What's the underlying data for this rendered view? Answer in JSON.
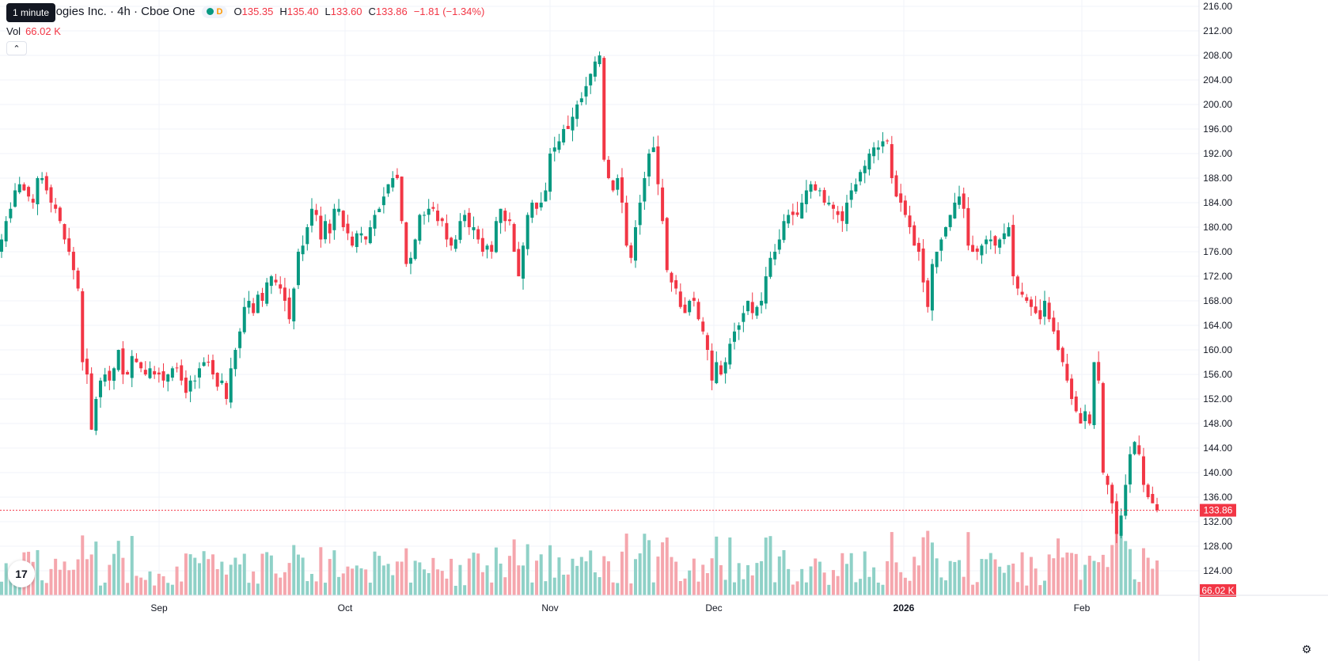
{
  "legend": {
    "title": "r Technologies Inc. · 4h · Cboe One",
    "status_letter": "D",
    "open_label": "O",
    "open": "135.35",
    "high_label": "H",
    "high": "135.40",
    "low_label": "L",
    "low": "133.60",
    "close_label": "C",
    "close": "133.86",
    "change": "−1.81 (−1.34%)",
    "tooltip": "1 minute"
  },
  "volume": {
    "label": "Vol",
    "value": "66.02 K"
  },
  "colors": {
    "up": "#089981",
    "down": "#f23645",
    "vol_up": "#8fd1c7",
    "vol_down": "#f5a6ad",
    "grid": "#f0f3fa",
    "axis_text": "#131722"
  },
  "chart_data": {
    "type": "candlestick",
    "title": "",
    "ylim": [
      120,
      216
    ],
    "y_ticks": [
      "216.00",
      "212.00",
      "208.00",
      "204.00",
      "200.00",
      "196.00",
      "192.00",
      "188.00",
      "184.00",
      "180.00",
      "176.00",
      "172.00",
      "168.00",
      "164.00",
      "160.00",
      "156.00",
      "152.00",
      "148.00",
      "144.00",
      "140.00",
      "136.00",
      "132.00",
      "128.00",
      "124.00"
    ],
    "x_ticks": [
      "Sep",
      "Oct",
      "Nov",
      "Dec",
      "2026",
      "Feb"
    ],
    "last_price": "133.86",
    "last_volume": "66.02 K",
    "closes": [
      178,
      181,
      183,
      186,
      187,
      186,
      185,
      184,
      188,
      188,
      186,
      184,
      183,
      181,
      178,
      176,
      173,
      170,
      158,
      156,
      147,
      152,
      155,
      156,
      155,
      157,
      160,
      156,
      156,
      159,
      158,
      157,
      156,
      157,
      156,
      156,
      155,
      156,
      157,
      157,
      155,
      153,
      155,
      155,
      157,
      158,
      158,
      156,
      154,
      155,
      152,
      157,
      160,
      163,
      167,
      168,
      166,
      169,
      168,
      171,
      172,
      171,
      170,
      168,
      165,
      170,
      176,
      177,
      180,
      183,
      182,
      178,
      181,
      179,
      183,
      183,
      180,
      179,
      177,
      179,
      179,
      178,
      180,
      182,
      183,
      185,
      187,
      188,
      188,
      181,
      174,
      175,
      178,
      182,
      182,
      183,
      183,
      181,
      181,
      178,
      177,
      178,
      181,
      182,
      180,
      180,
      178,
      176,
      177,
      176,
      181,
      183,
      181,
      181,
      176,
      172,
      177,
      182,
      184,
      183,
      184,
      186,
      192,
      193,
      194,
      196,
      196,
      198,
      200,
      201,
      203,
      205,
      207,
      208,
      191,
      188,
      186,
      188,
      184,
      177,
      175,
      180,
      184,
      188,
      192,
      193,
      187,
      181,
      173,
      171,
      170,
      167,
      166,
      168,
      168,
      165,
      163,
      160,
      155,
      158,
      156,
      158,
      161,
      163,
      164,
      166,
      168,
      166,
      167,
      168,
      172,
      175,
      176,
      178,
      181,
      182,
      182,
      182,
      184,
      186,
      187,
      186,
      186,
      184,
      184,
      183,
      182,
      181,
      184,
      186,
      187,
      189,
      190,
      192,
      193,
      193,
      194,
      194,
      188,
      185,
      184,
      182,
      180,
      177,
      176,
      171,
      167,
      174,
      176,
      178,
      180,
      182,
      184,
      185,
      183,
      177,
      176,
      176,
      177,
      178,
      178,
      177,
      178,
      179,
      180,
      172,
      170,
      169,
      168,
      167,
      166,
      165,
      168,
      165,
      163,
      160,
      158,
      155,
      152,
      150,
      148,
      150,
      148,
      158,
      155,
      140,
      138,
      135,
      130,
      133,
      138,
      143,
      145,
      143,
      138,
      136,
      135,
      133.86
    ]
  }
}
